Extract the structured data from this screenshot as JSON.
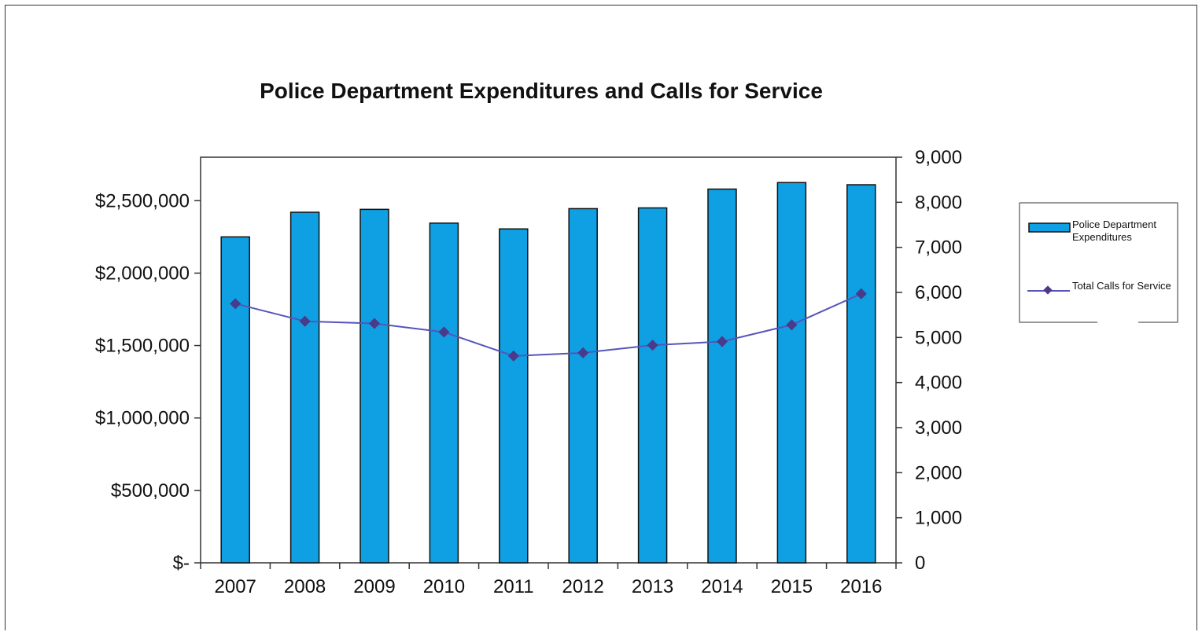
{
  "chart_data": {
    "type": "bar",
    "title": "Police Department Expenditures and Calls for Service",
    "xlabel": "",
    "ylabel": "",
    "y2label": "",
    "categories": [
      "2007",
      "2008",
      "2009",
      "2010",
      "2011",
      "2012",
      "2013",
      "2014",
      "2015",
      "2016"
    ],
    "series": [
      {
        "name": "Police Department Expenditures",
        "type": "bar",
        "axis": "left",
        "color": "#0ea0e2",
        "values": [
          2250000,
          2420000,
          2440000,
          2345000,
          2305000,
          2445000,
          2450000,
          2580000,
          2625000,
          2610000
        ]
      },
      {
        "name": "Total Calls for Service",
        "type": "line",
        "axis": "right",
        "color": "#5555bb",
        "marker_color": "#4a3a8a",
        "values": [
          5750,
          5360,
          5310,
          5120,
          4590,
          4660,
          4830,
          4910,
          5280,
          5970
        ]
      }
    ],
    "y_left": {
      "min": 0,
      "max": 2800000,
      "ticks": [
        0,
        500000,
        1000000,
        1500000,
        2000000,
        2500000
      ],
      "tick_labels": [
        "$-",
        "$500,000",
        "$1,000,000",
        "$1,500,000",
        "$2,000,000",
        "$2,500,000"
      ]
    },
    "y_right": {
      "min": 0,
      "max": 9000,
      "ticks": [
        0,
        1000,
        2000,
        3000,
        4000,
        5000,
        6000,
        7000,
        8000,
        9000
      ],
      "tick_labels": [
        "0",
        "1,000",
        "2,000",
        "3,000",
        "4,000",
        "5,000",
        "6,000",
        "7,000",
        "8,000",
        "9,000"
      ]
    },
    "grid": false,
    "legend": {
      "placement": "right",
      "entries": [
        "Police Department Expenditures",
        "Total Calls for Service"
      ]
    }
  }
}
